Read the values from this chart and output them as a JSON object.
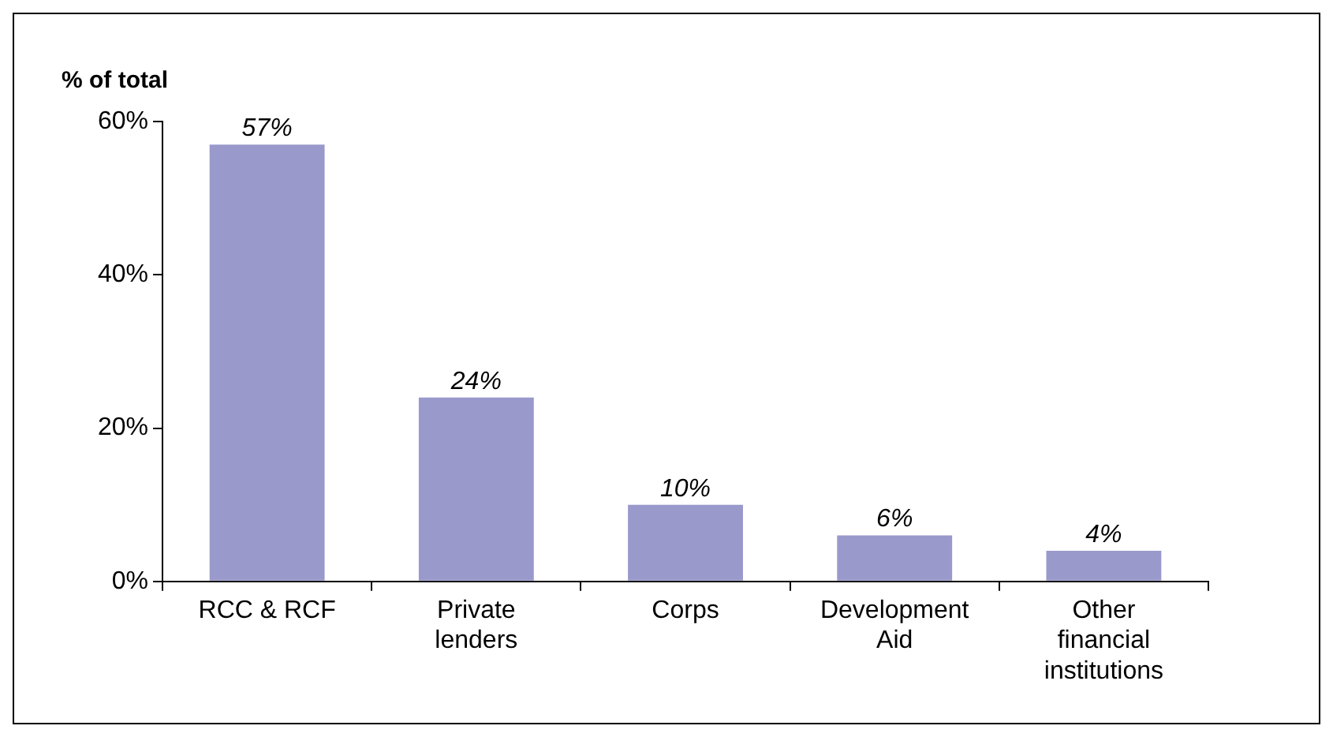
{
  "chart_data": {
    "type": "bar",
    "ylabel": "% of total",
    "categories": [
      "RCC & RCF",
      "Private lenders",
      "Corps",
      "Development Aid",
      "Other financial institutions"
    ],
    "values": [
      57,
      24,
      10,
      6,
      4
    ],
    "value_labels": [
      "57%",
      "24%",
      "10%",
      "6%",
      "4%"
    ],
    "color": "#9999cc",
    "ylim": [
      0,
      60
    ],
    "yticks": [
      {
        "value": 0,
        "label": "0%"
      },
      {
        "value": 20,
        "label": "20%"
      },
      {
        "value": 40,
        "label": "40%"
      },
      {
        "value": 60,
        "label": "60%"
      }
    ],
    "grid": false,
    "legend": false
  }
}
